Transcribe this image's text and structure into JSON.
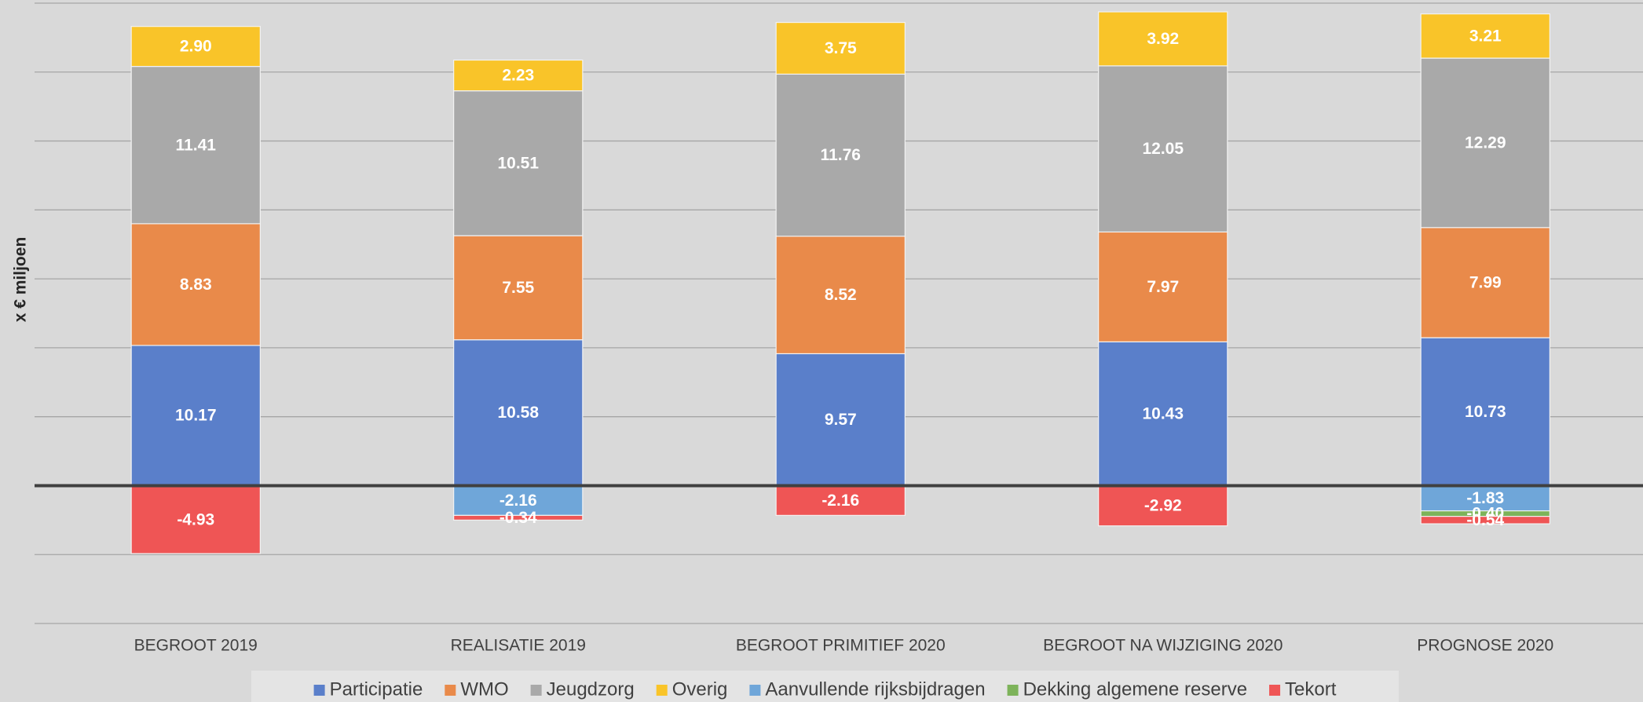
{
  "chart_data": {
    "type": "stacked_bar",
    "y_label": "x € miljoen",
    "categories": [
      "BEGROOT 2019",
      "REALISATIE 2019",
      "BEGROOT PRIMITIEF 2020",
      "BEGROOT NA WIJZIGING 2020",
      "PROGNOSE 2020"
    ],
    "series": [
      {
        "name": "Participatie",
        "color": "#5a7fca",
        "values": [
          10.17,
          10.58,
          9.57,
          10.43,
          10.73
        ],
        "value_labels": [
          "10.17",
          "10.58",
          "9.57",
          "10.43",
          "10.73"
        ]
      },
      {
        "name": "WMO",
        "color": "#e98a4a",
        "values": [
          8.83,
          7.55,
          8.52,
          7.97,
          7.99
        ],
        "value_labels": [
          "8.83",
          "7.55",
          "8.52",
          "7.97",
          "7.99"
        ]
      },
      {
        "name": "Jeugdzorg",
        "color": "#a9a9a9",
        "values": [
          11.41,
          10.51,
          11.76,
          12.05,
          12.29
        ],
        "value_labels": [
          "11.41",
          "10.51",
          "11.76",
          "12.05",
          "12.29"
        ]
      },
      {
        "name": "Overig",
        "color": "#f9c429",
        "values": [
          2.9,
          2.23,
          3.75,
          3.92,
          3.21
        ],
        "value_labels": [
          "2.90",
          "2.23",
          "3.75",
          "3.92",
          "3.21"
        ]
      },
      {
        "name": "Aanvullende rijksbijdragen",
        "color": "#6fa6d9",
        "values": [
          null,
          -2.16,
          null,
          null,
          -1.83
        ],
        "value_labels": [
          null,
          "-2.16",
          null,
          null,
          "-1.83"
        ]
      },
      {
        "name": "Dekking algemene reserve",
        "color": "#7db35a",
        "values": [
          null,
          null,
          null,
          null,
          -0.4
        ],
        "value_labels": [
          null,
          null,
          null,
          null,
          "-0.40"
        ]
      },
      {
        "name": "Tekort",
        "color": "#ef5555",
        "values": [
          -4.93,
          -0.34,
          -2.16,
          -2.92,
          -0.54
        ],
        "value_labels": [
          "-4.93",
          "-0.34",
          "-2.16",
          "-2.92",
          "-0.54"
        ]
      }
    ],
    "ylim": [
      -10,
      35
    ],
    "yticks": [
      -10,
      -5,
      0,
      5,
      10,
      15,
      20,
      25,
      30,
      35
    ],
    "grid": true,
    "legend": "bottom"
  }
}
